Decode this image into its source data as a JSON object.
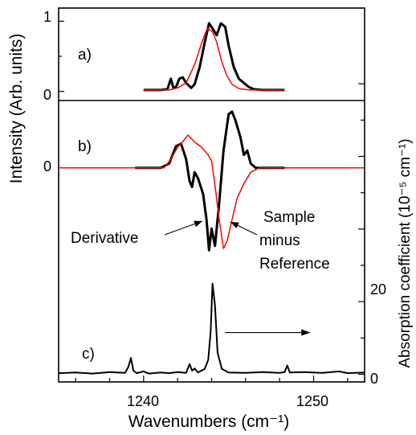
{
  "chart_data": {
    "type": "line",
    "xlabel": "Wavenumbers (cm⁻¹)",
    "ylabel_left": "Intensity (Arb. units)",
    "ylabel_right": "Absorption coefficient (10⁻⁵ cm⁻¹)",
    "xlim": [
      1235,
      1253
    ],
    "x_ticks": [
      "1240",
      "1250"
    ],
    "panels": [
      {
        "id": "a",
        "label": "a)",
        "ylim": [
          -0.05,
          1.05
        ],
        "y_ticks": [
          "0",
          "1"
        ],
        "series": [
          {
            "color": "#000000",
            "points": [
              [
                1240.0,
                0.02
              ],
              [
                1241.0,
                0.02
              ],
              [
                1241.4,
                0.03
              ],
              [
                1241.6,
                0.18
              ],
              [
                1241.75,
                0.05
              ],
              [
                1241.9,
                0.06
              ],
              [
                1242.1,
                0.18
              ],
              [
                1242.3,
                0.2
              ],
              [
                1242.5,
                0.12
              ],
              [
                1242.8,
                0.05
              ],
              [
                1243.0,
                0.1
              ],
              [
                1243.3,
                0.35
              ],
              [
                1243.6,
                0.7
              ],
              [
                1243.85,
                0.97
              ],
              [
                1244.1,
                0.88
              ],
              [
                1244.3,
                0.8
              ],
              [
                1244.55,
                0.97
              ],
              [
                1244.8,
                0.92
              ],
              [
                1245.0,
                0.65
              ],
              [
                1245.3,
                0.35
              ],
              [
                1245.6,
                0.18
              ],
              [
                1245.9,
                0.12
              ],
              [
                1246.2,
                0.06
              ],
              [
                1246.5,
                0.03
              ],
              [
                1247.0,
                0.02
              ],
              [
                1248.3,
                0.02
              ]
            ]
          },
          {
            "color": "#ff0000",
            "points": [
              [
                1240.0,
                0.02
              ],
              [
                1241.5,
                0.02
              ],
              [
                1242.0,
                0.05
              ],
              [
                1242.5,
                0.12
              ],
              [
                1243.0,
                0.38
              ],
              [
                1243.4,
                0.68
              ],
              [
                1243.75,
                0.9
              ],
              [
                1244.05,
                0.85
              ],
              [
                1244.3,
                0.7
              ],
              [
                1244.6,
                0.42
              ],
              [
                1244.9,
                0.22
              ],
              [
                1245.2,
                0.1
              ],
              [
                1245.6,
                0.04
              ],
              [
                1246.2,
                0.02
              ],
              [
                1248.3,
                0.02
              ]
            ]
          }
        ]
      },
      {
        "id": "b",
        "label": "b)",
        "ylim": [
          -1.05,
          0.75
        ],
        "y_ticks": [
          "0"
        ],
        "annotations": [
          {
            "text": "Derivative",
            "arrow_to": [
              1243.8,
              -0.62
            ]
          },
          {
            "text": "Sample",
            "text2": "minus",
            "text3": "Reference",
            "arrow_to": [
              1244.6,
              -0.72
            ]
          }
        ],
        "series": [
          {
            "color": "#000000",
            "points": [
              [
                1239.5,
                0.0
              ],
              [
                1241.0,
                0.0
              ],
              [
                1241.5,
                0.05
              ],
              [
                1241.9,
                0.25
              ],
              [
                1242.2,
                0.28
              ],
              [
                1242.5,
                0.1
              ],
              [
                1242.7,
                -0.15
              ],
              [
                1242.85,
                -0.22
              ],
              [
                1243.0,
                -0.05
              ],
              [
                1243.2,
                -0.12
              ],
              [
                1243.5,
                -0.3
              ],
              [
                1243.7,
                -0.6
              ],
              [
                1243.85,
                -0.95
              ],
              [
                1244.0,
                -0.7
              ],
              [
                1244.2,
                -0.9
              ],
              [
                1244.45,
                -0.4
              ],
              [
                1244.7,
                0.2
              ],
              [
                1245.0,
                0.62
              ],
              [
                1245.2,
                0.65
              ],
              [
                1245.4,
                0.55
              ],
              [
                1245.7,
                0.35
              ],
              [
                1245.9,
                0.15
              ],
              [
                1246.1,
                0.2
              ],
              [
                1246.3,
                0.05
              ],
              [
                1246.6,
                0.0
              ],
              [
                1248.3,
                0.0
              ]
            ]
          },
          {
            "color": "#ff0000",
            "points": [
              [
                1235.0,
                0.0
              ],
              [
                1240.0,
                0.0
              ],
              [
                1241.2,
                0.0
              ],
              [
                1241.6,
                0.1
              ],
              [
                1242.0,
                0.24
              ],
              [
                1242.3,
                0.3
              ],
              [
                1242.6,
                0.38
              ],
              [
                1243.0,
                0.3
              ],
              [
                1243.4,
                0.24
              ],
              [
                1243.8,
                0.15
              ],
              [
                1244.0,
                0.08
              ],
              [
                1244.2,
                -0.2
              ],
              [
                1244.45,
                -0.6
              ],
              [
                1244.7,
                -0.93
              ],
              [
                1244.9,
                -0.85
              ],
              [
                1245.2,
                -0.6
              ],
              [
                1245.5,
                -0.35
              ],
              [
                1245.9,
                -0.18
              ],
              [
                1246.3,
                -0.05
              ],
              [
                1246.8,
                0.0
              ],
              [
                1253.0,
                0.0
              ]
            ]
          }
        ]
      },
      {
        "id": "c",
        "label": "c)",
        "ylim": [
          -1,
          30
        ],
        "y_ticks_right": [
          "0",
          "20"
        ],
        "series": [
          {
            "color": "#000000",
            "points": [
              [
                1235.0,
                0.3
              ],
              [
                1236.0,
                0.5
              ],
              [
                1237.0,
                0.2
              ],
              [
                1238.0,
                0.6
              ],
              [
                1238.9,
                0.4
              ],
              [
                1239.1,
                2.0
              ],
              [
                1239.25,
                4.5
              ],
              [
                1239.4,
                1.0
              ],
              [
                1239.6,
                0.3
              ],
              [
                1240.0,
                0.8
              ],
              [
                1240.3,
                0.2
              ],
              [
                1241.0,
                0.5
              ],
              [
                1241.5,
                0.3
              ],
              [
                1242.0,
                0.6
              ],
              [
                1242.5,
                0.4
              ],
              [
                1242.7,
                2.8
              ],
              [
                1242.85,
                1.0
              ],
              [
                1243.0,
                1.6
              ],
              [
                1243.2,
                0.5
              ],
              [
                1243.6,
                1.5
              ],
              [
                1243.8,
                4.0
              ],
              [
                1243.95,
                12.0
              ],
              [
                1244.05,
                25.0
              ],
              [
                1244.2,
                19.0
              ],
              [
                1244.35,
                6.0
              ],
              [
                1244.6,
                1.5
              ],
              [
                1245.0,
                0.5
              ],
              [
                1246.0,
                0.4
              ],
              [
                1247.0,
                0.6
              ],
              [
                1248.0,
                0.4
              ],
              [
                1248.3,
                0.6
              ],
              [
                1248.45,
                2.4
              ],
              [
                1248.6,
                0.5
              ],
              [
                1249.5,
                0.6
              ],
              [
                1250.5,
                0.4
              ],
              [
                1251.5,
                0.8
              ],
              [
                1252.0,
                0.3
              ],
              [
                1253.0,
                0.5
              ]
            ]
          }
        ],
        "arrow": {
          "from": [
            1244.8,
            11.5
          ],
          "to": [
            1249.8,
            11.5
          ]
        }
      }
    ]
  }
}
